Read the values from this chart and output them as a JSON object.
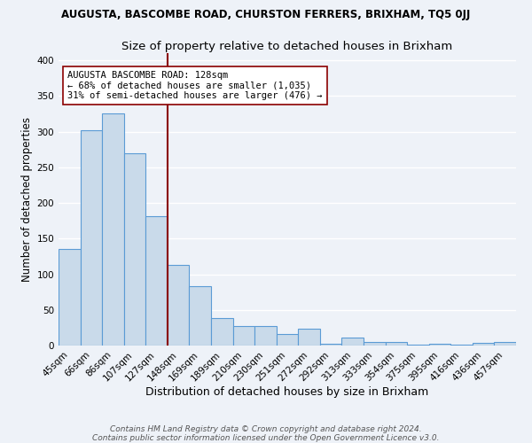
{
  "title": "AUGUSTA, BASCOMBE ROAD, CHURSTON FERRERS, BRIXHAM, TQ5 0JJ",
  "subtitle": "Size of property relative to detached houses in Brixham",
  "xlabel": "Distribution of detached houses by size in Brixham",
  "ylabel": "Number of detached properties",
  "categories": [
    "45sqm",
    "66sqm",
    "86sqm",
    "107sqm",
    "127sqm",
    "148sqm",
    "169sqm",
    "189sqm",
    "210sqm",
    "230sqm",
    "251sqm",
    "272sqm",
    "292sqm",
    "313sqm",
    "333sqm",
    "354sqm",
    "375sqm",
    "395sqm",
    "416sqm",
    "436sqm",
    "457sqm"
  ],
  "values": [
    135,
    302,
    325,
    270,
    181,
    113,
    83,
    38,
    27,
    27,
    16,
    24,
    3,
    11,
    5,
    5,
    1,
    3,
    1,
    4,
    5
  ],
  "bar_color": "#c9daea",
  "bar_edge_color": "#5b9bd5",
  "bar_linewidth": 0.8,
  "marker_line_index": 4,
  "marker_line_color": "#8b0000",
  "annotation_text": "AUGUSTA BASCOMBE ROAD: 128sqm\n← 68% of detached houses are smaller (1,035)\n31% of semi-detached houses are larger (476) →",
  "annotation_box_color": "white",
  "annotation_box_edge": "#8b0000",
  "footer_line1": "Contains HM Land Registry data © Crown copyright and database right 2024.",
  "footer_line2": "Contains public sector information licensed under the Open Government Licence v3.0.",
  "ylim": [
    0,
    410
  ],
  "background_color": "#eef2f8",
  "grid_color": "white",
  "title_fontsize": 8.5,
  "subtitle_fontsize": 9.5,
  "xlabel_fontsize": 9,
  "ylabel_fontsize": 8.5,
  "tick_fontsize": 7.5,
  "annotation_fontsize": 7.5,
  "footer_fontsize": 6.5
}
